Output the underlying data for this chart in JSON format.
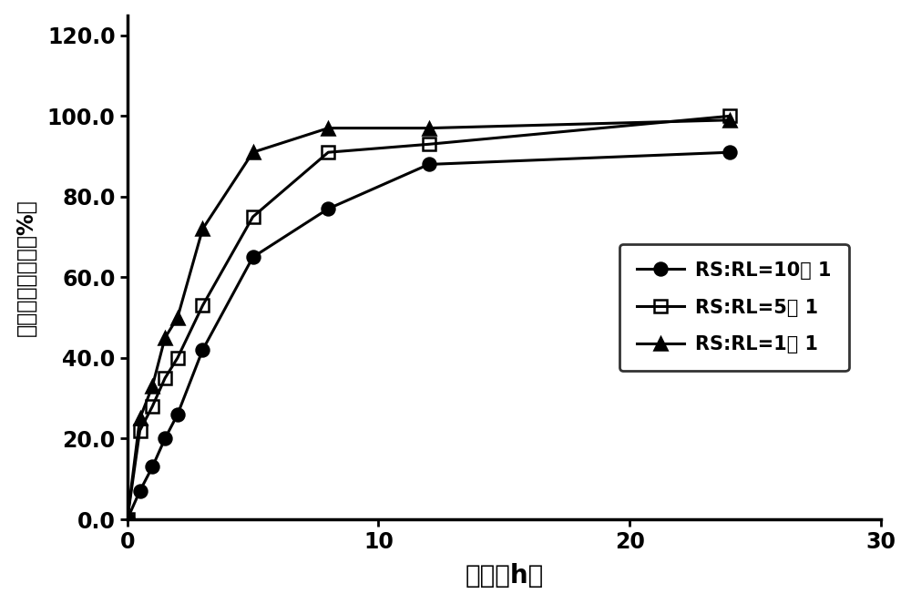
{
  "series": [
    {
      "label": "RS:RL=10： 1",
      "x": [
        0,
        0.5,
        1,
        1.5,
        2,
        3,
        5,
        8,
        12,
        24
      ],
      "y": [
        0,
        7,
        13,
        20,
        26,
        42,
        65,
        77,
        88,
        91
      ],
      "marker": "o",
      "linestyle": "-",
      "color": "#000000",
      "markersize": 10,
      "fillstyle": "full"
    },
    {
      "label": "RS:RL=5： 1",
      "x": [
        0,
        0.5,
        1,
        1.5,
        2,
        3,
        5,
        8,
        12,
        24
      ],
      "y": [
        0,
        22,
        28,
        35,
        40,
        53,
        75,
        91,
        93,
        100
      ],
      "marker": "s",
      "linestyle": "-",
      "color": "#000000",
      "markersize": 10,
      "fillstyle": "none"
    },
    {
      "label": "RS:RL=1： 1",
      "x": [
        0,
        0.5,
        1,
        1.5,
        2,
        3,
        5,
        8,
        12,
        24
      ],
      "y": [
        0,
        25,
        33,
        45,
        50,
        72,
        91,
        97,
        97,
        99
      ],
      "marker": "^",
      "linestyle": "-",
      "color": "#000000",
      "markersize": 10,
      "fillstyle": "full"
    }
  ],
  "xlabel": "时间（h）",
  "ylabel": "累计释放百分率（%）",
  "xlim": [
    0,
    30
  ],
  "ylim": [
    0,
    125
  ],
  "xticks": [
    0,
    10,
    20,
    30
  ],
  "yticks": [
    0.0,
    20.0,
    40.0,
    60.0,
    80.0,
    100.0,
    120.0
  ],
  "background_color": "#ffffff",
  "linewidth": 2.2,
  "xlabel_fontsize": 20,
  "ylabel_fontsize": 17,
  "tick_fontsize": 17,
  "legend_fontsize": 15,
  "spine_linewidth": 2.5
}
